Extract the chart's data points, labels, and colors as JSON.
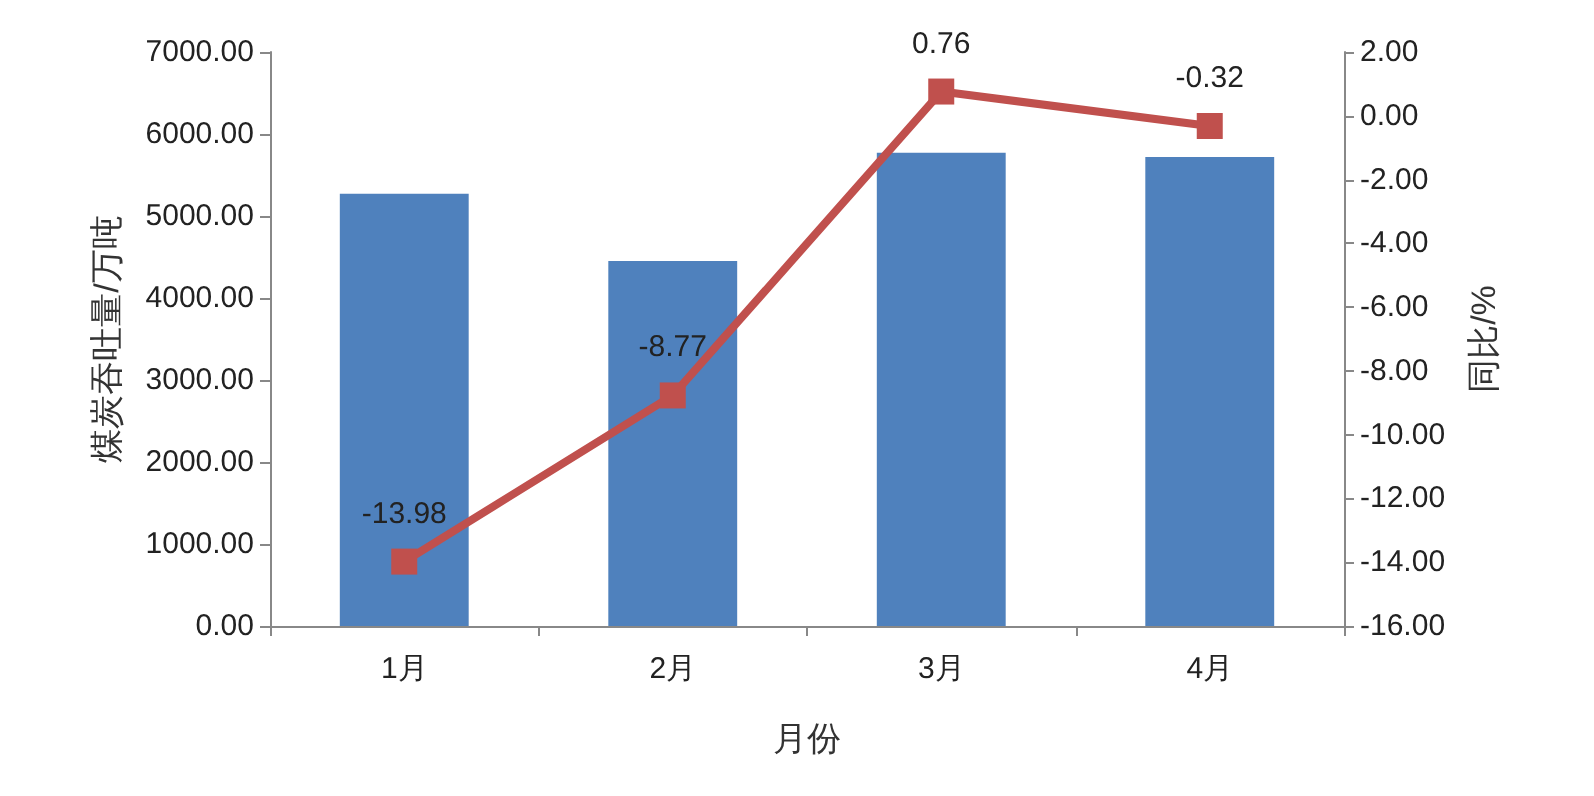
{
  "chart_data": {
    "type": "bar",
    "xlabel": "月份",
    "ylabel": "煤炭吞吐量/万吨",
    "y2label": "同比/%",
    "categories": [
      "1月",
      "2月",
      "3月",
      "4月"
    ],
    "series": [
      {
        "color": "#4f81bd",
        "values": [
          5270,
          4450,
          5770,
          5720
        ]
      },
      {
        "type": "line",
        "axis": "y2",
        "color": "#c0504d",
        "values": [
          -13.98,
          -8.77,
          0.76,
          -0.32
        ],
        "value_labels": [
          "-13.98",
          "-8.77",
          "0.76",
          "-0.32"
        ],
        "marker": "square",
        "line_style": "solid"
      }
    ],
    "ylim": [
      0,
      7000
    ],
    "yticks": [
      {
        "value": 0,
        "label": "0.00"
      },
      {
        "value": 1000,
        "label": "1000.00"
      },
      {
        "value": 2000,
        "label": "2000.00"
      },
      {
        "value": 3000,
        "label": "3000.00"
      },
      {
        "value": 4000,
        "label": "4000.00"
      },
      {
        "value": 5000,
        "label": "5000.00"
      },
      {
        "value": 6000,
        "label": "6000.00"
      },
      {
        "value": 7000,
        "label": "7000.00"
      }
    ],
    "y2lim": [
      -16,
      2
    ],
    "y2ticks": [
      {
        "value": -16,
        "label": "-16.00"
      },
      {
        "value": -14,
        "label": "-14.00"
      },
      {
        "value": -12,
        "label": "-12.00"
      },
      {
        "value": -10,
        "label": "-10.00"
      },
      {
        "value": -8,
        "label": "-8.00"
      },
      {
        "value": -6,
        "label": "-6.00"
      },
      {
        "value": -4,
        "label": "-4.00"
      },
      {
        "value": -2,
        "label": "-2.00"
      },
      {
        "value": 0,
        "label": "0.00"
      },
      {
        "value": 2,
        "label": "2.00"
      }
    ],
    "grid": false
  }
}
